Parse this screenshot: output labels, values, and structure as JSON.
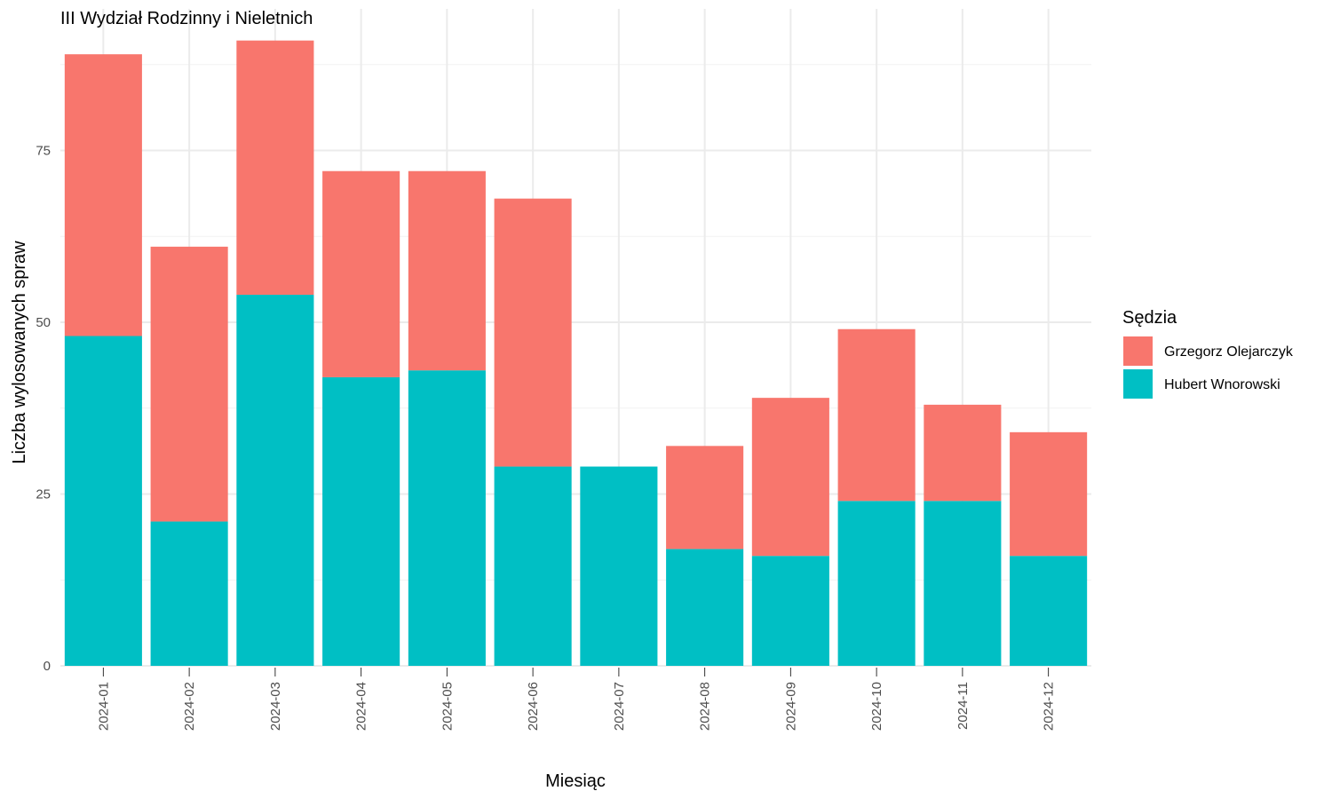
{
  "chart_data": {
    "type": "bar",
    "stacked": true,
    "title": "III Wydział Rodzinny i Nieletnich",
    "xlabel": "Miesiąc",
    "ylabel": "Liczba wylosowanych spraw",
    "ylim": [
      0,
      95
    ],
    "y_ticks": [
      0,
      25,
      50,
      75
    ],
    "grid": true,
    "categories": [
      "2024-01",
      "2024-02",
      "2024-03",
      "2024-04",
      "2024-05",
      "2024-06",
      "2024-07",
      "2024-08",
      "2024-09",
      "2024-10",
      "2024-11",
      "2024-12"
    ],
    "series": [
      {
        "name": "Hubert Wnorowski",
        "color": "#00BFC4",
        "values": [
          48,
          21,
          54,
          42,
          43,
          29,
          29,
          17,
          16,
          24,
          24,
          16
        ]
      },
      {
        "name": "Grzegorz Olejarczyk",
        "color": "#F8766D",
        "values": [
          41,
          40,
          37,
          30,
          29,
          39,
          0,
          15,
          23,
          25,
          14,
          18
        ]
      }
    ],
    "legend": {
      "title": "Sędzia",
      "position": "right",
      "order": [
        "Grzegorz Olejarczyk",
        "Hubert Wnorowski"
      ]
    }
  }
}
